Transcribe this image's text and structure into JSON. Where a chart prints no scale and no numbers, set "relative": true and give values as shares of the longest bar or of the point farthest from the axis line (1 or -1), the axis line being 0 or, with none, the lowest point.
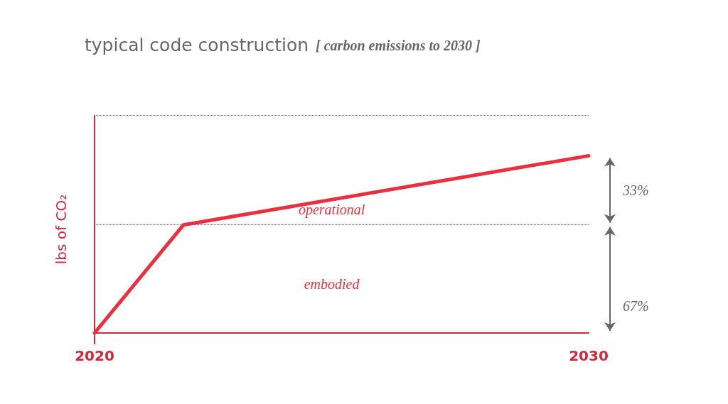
{
  "chart_data": {
    "type": "line",
    "title": "typical code construction",
    "subtitle": "[ carbon emissions to 2030 ]",
    "ylabel": "lbs of CO₂",
    "relative": true,
    "x": [
      2020,
      2021.8,
      2030
    ],
    "xlim": [
      2020,
      2030
    ],
    "xticks": [
      {
        "value": 2020,
        "label": "2020"
      },
      {
        "value": 2030,
        "label": "2030"
      }
    ],
    "series": [
      {
        "color": "#e8303f",
        "values": [
          0,
          0.61,
          1
        ]
      }
    ],
    "ref_lines": [
      {
        "axis": "y",
        "value": 0.61,
        "line_style": "dotted",
        "color": "#e8303f"
      },
      {
        "axis": "y",
        "value": 1.23,
        "line_style": "dotted",
        "color": "#e8303f"
      }
    ],
    "annotations": [
      "operational",
      "embodied",
      "33%",
      "67%"
    ],
    "grid": false,
    "marker": "none",
    "line_style": "solid"
  }
}
